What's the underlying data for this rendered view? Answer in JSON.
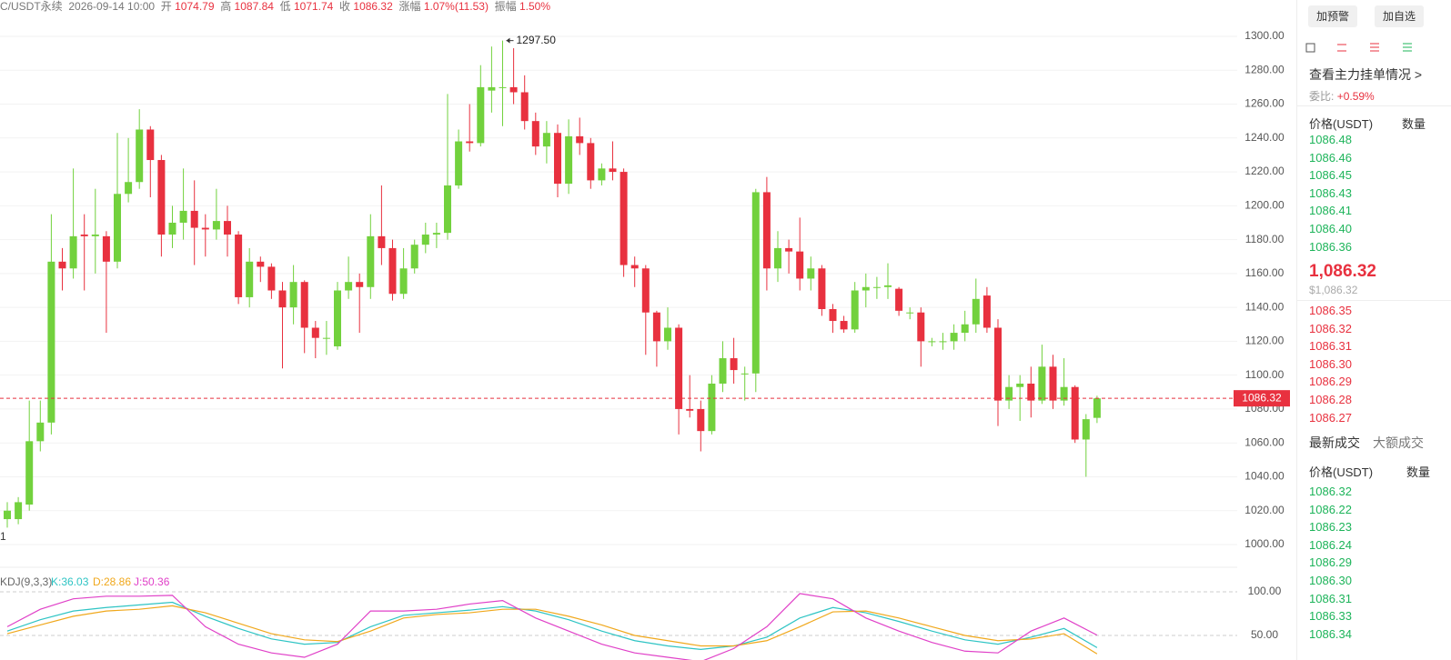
{
  "header": {
    "symbol": "C/USDT永续",
    "time": "2026-09-14 10:00",
    "open_label": "开",
    "open": "1074.79",
    "high_label": "高",
    "high": "1087.84",
    "low_label": "低",
    "low": "1071.74",
    "close_label": "收",
    "close": "1086.32",
    "change_label": "涨幅",
    "change": "1.07%(11.53)",
    "amp_label": "振幅",
    "amp": "1.50%"
  },
  "chart_data": {
    "type": "candlestick",
    "open": [
      1015,
      1015,
      1023.6,
      1061,
      1072,
      1167,
      1163,
      1183,
      1182,
      1182,
      1167,
      1207,
      1214,
      1245,
      1227,
      1183,
      1190,
      1197,
      1187,
      1186,
      1191,
      1183,
      1146,
      1167,
      1164,
      1150,
      1140,
      1155,
      1128,
      1122,
      1117,
      1150,
      1155,
      1152,
      1182,
      1175,
      1148,
      1163,
      1177,
      1183,
      1184,
      1212,
      1238,
      1237,
      1268,
      1270,
      1270,
      1267,
      1250,
      1235,
      1243,
      1213,
      1241,
      1237,
      1215,
      1222,
      1220,
      1165,
      1163,
      1137,
      1120,
      1128,
      1080,
      1080,
      1067,
      1095,
      1110,
      1101,
      1101,
      1208,
      1163,
      1175,
      1173,
      1157,
      1163,
      1139,
      1132,
      1127,
      1150,
      1152,
      1152,
      1151,
      1137,
      1137,
      1120,
      1120,
      1120,
      1125,
      1130,
      1147,
      1128,
      1085,
      1093,
      1095,
      1085,
      1105,
      1085,
      1093,
      1062,
      1074.79
    ],
    "high": [
      1025,
      1028,
      1085,
      1085,
      1195,
      1175,
      1222,
      1195,
      1210,
      1185,
      1243,
      1240,
      1257,
      1247,
      1230,
      1200,
      1222,
      1215,
      1195,
      1210,
      1200,
      1185,
      1175,
      1170,
      1166,
      1155,
      1165,
      1156,
      1132,
      1132,
      1155,
      1170,
      1160,
      1195,
      1212,
      1180,
      1175,
      1180,
      1190,
      1190,
      1266,
      1245,
      1260,
      1283,
      1294,
      1297.5,
      1293,
      1277,
      1255,
      1250,
      1248,
      1251,
      1252,
      1240,
      1225,
      1238,
      1222,
      1170,
      1165,
      1138,
      1140,
      1130,
      1100,
      1085,
      1100,
      1120,
      1122,
      1105,
      1210,
      1217,
      1185,
      1180,
      1193,
      1170,
      1165,
      1142,
      1135,
      1155,
      1160,
      1158,
      1166,
      1152,
      1140,
      1140,
      1122,
      1125,
      1130,
      1138,
      1157,
      1152,
      1133,
      1100,
      1100,
      1105,
      1118,
      1112,
      1110,
      1094,
      1077,
      1087.84
    ],
    "low": [
      1010,
      1012,
      1020,
      1055,
      1065,
      1150,
      1157,
      1150,
      1160,
      1125,
      1163,
      1202,
      1210,
      1205,
      1170,
      1175,
      1180,
      1165,
      1170,
      1180,
      1170,
      1142,
      1140,
      1155,
      1145,
      1104,
      1130,
      1113,
      1110,
      1112,
      1115,
      1145,
      1125,
      1145,
      1165,
      1144,
      1145,
      1160,
      1172,
      1175,
      1180,
      1210,
      1232,
      1235,
      1255,
      1247,
      1260,
      1245,
      1230,
      1225,
      1205,
      1207,
      1230,
      1210,
      1212,
      1215,
      1158,
      1152,
      1112,
      1105,
      1115,
      1065,
      1075,
      1055,
      1065,
      1090,
      1095,
      1085,
      1090,
      1150,
      1155,
      1160,
      1150,
      1150,
      1135,
      1125,
      1125,
      1125,
      1140,
      1145,
      1145,
      1135,
      1133,
      1105,
      1117,
      1115,
      1115,
      1120,
      1125,
      1125,
      1070,
      1080,
      1073,
      1075,
      1083,
      1080,
      1082,
      1060,
      1040,
      1071.74
    ],
    "close": [
      1020,
      1025,
      1061,
      1072,
      1167,
      1163,
      1182,
      1182,
      1183,
      1167,
      1207,
      1214,
      1245,
      1227,
      1183,
      1190,
      1197,
      1187,
      1186,
      1191,
      1183,
      1146,
      1167,
      1164,
      1150,
      1140,
      1155,
      1128,
      1122,
      1122,
      1150,
      1155,
      1152,
      1182,
      1175,
      1148,
      1163,
      1177,
      1183,
      1184,
      1212,
      1238,
      1237,
      1270,
      1270,
      1270,
      1267,
      1250,
      1235,
      1243,
      1213,
      1241,
      1237,
      1215,
      1222,
      1220,
      1165,
      1163,
      1137,
      1120,
      1128,
      1080,
      1079,
      1067,
      1095,
      1110,
      1103,
      1101,
      1208,
      1163,
      1175,
      1173,
      1157,
      1163,
      1139,
      1132,
      1127,
      1150,
      1152,
      1152,
      1153,
      1138,
      1137,
      1120,
      1120,
      1120,
      1125,
      1130,
      1145,
      1128,
      1085,
      1093,
      1095,
      1085,
      1105,
      1085,
      1093,
      1062,
      1074,
      1086.32
    ],
    "up_color": "#72d13d",
    "down_color": "#e8313f",
    "ylim": [
      1000,
      1300
    ],
    "yticks": [
      {
        "value": 1300,
        "label": "1300.00"
      },
      {
        "value": 1280,
        "label": "1280.00"
      },
      {
        "value": 1260,
        "label": "1260.00"
      },
      {
        "value": 1240,
        "label": "1240.00"
      },
      {
        "value": 1220,
        "label": "1220.00"
      },
      {
        "value": 1200,
        "label": "1200.00"
      },
      {
        "value": 1180,
        "label": "1180.00"
      },
      {
        "value": 1160,
        "label": "1160.00"
      },
      {
        "value": 1140,
        "label": "1140.00"
      },
      {
        "value": 1120,
        "label": "1120.00"
      },
      {
        "value": 1100,
        "label": "1100.00"
      },
      {
        "value": 1080,
        "label": "1080.00"
      },
      {
        "value": 1060,
        "label": "1060.00"
      },
      {
        "value": 1040,
        "label": "1040.00"
      },
      {
        "value": 1020,
        "label": "1020.00"
      },
      {
        "value": 1000,
        "label": "1000.00"
      }
    ],
    "grid": true,
    "annotation": {
      "index": 45,
      "value": 1297.5,
      "label": "1297.50"
    },
    "min_label": "1",
    "last_price": 1086.32,
    "kdj": {
      "title": "KDJ(9,3,3)",
      "k_label": "K:36.03",
      "d_label": "D:28.86",
      "j_label": "J:50.36",
      "x": [
        0,
        3,
        6,
        9,
        12,
        15,
        18,
        21,
        24,
        27,
        30,
        33,
        36,
        39,
        42,
        45,
        48,
        51,
        54,
        57,
        60,
        63,
        66,
        69,
        72,
        75,
        78,
        81,
        84,
        87,
        90,
        93,
        96,
        99
      ],
      "ylim": [
        0,
        100
      ],
      "yticks": [
        {
          "value": 100,
          "label": "100.00"
        },
        {
          "value": 50,
          "label": "50.00"
        }
      ],
      "series": [
        {
          "name": "K",
          "color": "#2ec4c4",
          "values": [
            55,
            68,
            78,
            82,
            85,
            88,
            72,
            58,
            46,
            40,
            42,
            60,
            73,
            76,
            79,
            83,
            78,
            68,
            55,
            44,
            38,
            34,
            38,
            48,
            70,
            82,
            76,
            66,
            55,
            45,
            40,
            48,
            58,
            36.03
          ]
        },
        {
          "name": "D",
          "color": "#f0a81c",
          "values": [
            52,
            62,
            72,
            78,
            80,
            84,
            76,
            64,
            52,
            45,
            43,
            55,
            70,
            74,
            76,
            80,
            80,
            72,
            62,
            50,
            44,
            38,
            38,
            44,
            60,
            77,
            78,
            70,
            60,
            50,
            44,
            46,
            52,
            28.86
          ]
        },
        {
          "name": "J",
          "color": "#e040c8",
          "values": [
            60,
            80,
            92,
            95,
            95,
            96,
            60,
            40,
            30,
            25,
            40,
            78,
            78,
            80,
            86,
            90,
            70,
            55,
            40,
            30,
            25,
            20,
            35,
            60,
            98,
            92,
            70,
            55,
            42,
            32,
            30,
            55,
            70,
            50.36
          ]
        }
      ]
    }
  },
  "panel": {
    "btn_alert": "加预警",
    "btn_fav": "加自选",
    "depth_link": "查看主力挂单情况",
    "ratio_label": "委比:",
    "ratio": "+0.59%",
    "price_head": "价格(USDT)",
    "qty_head": "数量",
    "asks": [
      "1086.48",
      "1086.46",
      "1086.45",
      "1086.43",
      "1086.41",
      "1086.40",
      "1086.36"
    ],
    "last": "1,086.32",
    "last_usd": "$1,086.32",
    "bids": [
      "1086.35",
      "1086.32",
      "1086.31",
      "1086.30",
      "1086.29",
      "1086.28",
      "1086.27"
    ],
    "tab_latest": "最新成交",
    "tab_large": "大额成交",
    "trade_price_head": "价格(USDT)",
    "trade_qty_head": "数量",
    "trades": [
      "1086.32",
      "1086.22",
      "1086.23",
      "1086.24",
      "1086.29",
      "1086.30",
      "1086.31",
      "1086.33",
      "1086.34"
    ]
  }
}
